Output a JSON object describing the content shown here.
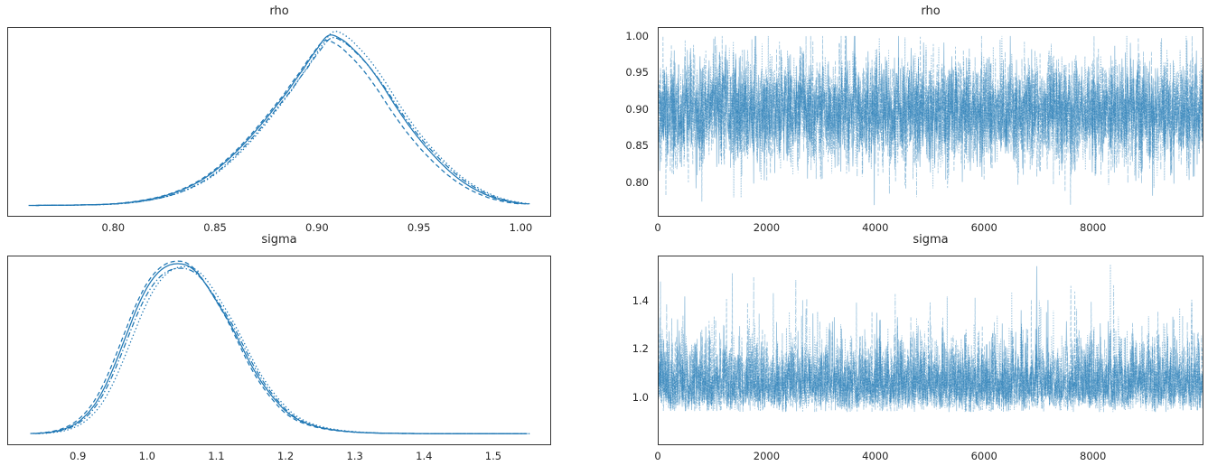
{
  "figure": {
    "background": "#ffffff",
    "line_color": "#1f77b4",
    "text_color": "#262626",
    "spine_color": "#363636",
    "n_chains": 4,
    "chain_linestyles": [
      "solid",
      "dashed",
      "dashdot",
      "dotted"
    ]
  },
  "chart_data": [
    {
      "id": "rho-posterior",
      "type": "line",
      "subtype": "kde-multichain",
      "title": "rho",
      "xlabel": "",
      "ylabel": "",
      "grid": false,
      "legend": "none",
      "xlim": [
        0.748,
        1.014
      ],
      "ylim_norm": [
        -0.055,
        1.045
      ],
      "x_ticks": [
        {
          "v": 0.8,
          "label": "0.80"
        },
        {
          "v": 0.85,
          "label": "0.85"
        },
        {
          "v": 0.9,
          "label": "0.90"
        },
        {
          "v": 0.95,
          "label": "0.95"
        },
        {
          "v": 1.0,
          "label": "1.00"
        }
      ],
      "y_ticks": [],
      "peak_x": 0.905,
      "curve": [
        [
          0.76,
          0.006
        ],
        [
          0.772,
          0.007
        ],
        [
          0.785,
          0.009
        ],
        [
          0.795,
          0.012
        ],
        [
          0.805,
          0.02
        ],
        [
          0.815,
          0.036
        ],
        [
          0.825,
          0.062
        ],
        [
          0.835,
          0.105
        ],
        [
          0.845,
          0.17
        ],
        [
          0.855,
          0.265
        ],
        [
          0.865,
          0.385
        ],
        [
          0.875,
          0.525
        ],
        [
          0.885,
          0.675
        ],
        [
          0.893,
          0.81
        ],
        [
          0.899,
          0.915
        ],
        [
          0.905,
          1.0
        ],
        [
          0.911,
          0.98
        ],
        [
          0.917,
          0.92
        ],
        [
          0.924,
          0.83
        ],
        [
          0.931,
          0.715
        ],
        [
          0.938,
          0.585
        ],
        [
          0.945,
          0.465
        ],
        [
          0.952,
          0.36
        ],
        [
          0.96,
          0.258
        ],
        [
          0.968,
          0.172
        ],
        [
          0.976,
          0.108
        ],
        [
          0.984,
          0.062
        ],
        [
          0.991,
          0.036
        ],
        [
          0.997,
          0.022
        ],
        [
          1.002,
          0.015
        ]
      ],
      "chains": [
        {
          "name": "chain-0",
          "style": "solid",
          "dash": null,
          "x_shift": 0.0,
          "y_scale": 1.0,
          "wiggle_amp": 0.008,
          "wiggle_freq": 55,
          "wiggle_phase": 0.5
        },
        {
          "name": "chain-1",
          "style": "dashed",
          "dash": [
            5,
            3.2
          ],
          "x_shift": -0.002,
          "y_scale": 0.958,
          "wiggle_amp": 0.012,
          "wiggle_freq": 48,
          "wiggle_phase": 2.1
        },
        {
          "name": "chain-2",
          "style": "dashdot",
          "dash": [
            6,
            2.5,
            1.4,
            2.5
          ],
          "x_shift": 0.0015,
          "y_scale": 0.99,
          "wiggle_amp": 0.01,
          "wiggle_freq": 62,
          "wiggle_phase": 4.0
        },
        {
          "name": "chain-3",
          "style": "dotted",
          "dash": [
            1.4,
            2.6
          ],
          "x_shift": 0.0025,
          "y_scale": 1.012,
          "wiggle_amp": 0.01,
          "wiggle_freq": 70,
          "wiggle_phase": 1.2
        }
      ]
    },
    {
      "id": "rho-trace",
      "type": "line",
      "subtype": "trace-multichain",
      "title": "rho",
      "xlabel": "",
      "ylabel": "",
      "grid": false,
      "legend": "none",
      "xlim": [
        0,
        9999
      ],
      "ylim": [
        0.755,
        1.012
      ],
      "x_ticks": [
        {
          "v": 0,
          "label": "0"
        },
        {
          "v": 2000,
          "label": "2000"
        },
        {
          "v": 4000,
          "label": "4000"
        },
        {
          "v": 6000,
          "label": "6000"
        },
        {
          "v": 8000,
          "label": "8000"
        }
      ],
      "y_ticks": [
        {
          "v": 0.8,
          "label": "0.80"
        },
        {
          "v": 0.85,
          "label": "0.85"
        },
        {
          "v": 0.9,
          "label": "0.90"
        },
        {
          "v": 0.95,
          "label": "0.95"
        },
        {
          "v": 1.0,
          "label": "1.00"
        }
      ],
      "n_points": 1500,
      "dist": {
        "kind": "normal",
        "mean": 0.898,
        "sd": 0.037,
        "min": 0.766,
        "max": 1.001
      },
      "spikes": [],
      "chains": [
        {
          "name": "chain-0",
          "style": "solid",
          "dash": null,
          "seed": 11,
          "opacity": 0.45
        },
        {
          "name": "chain-1",
          "style": "dashed",
          "dash": [
            4,
            2
          ],
          "seed": 22,
          "opacity": 0.4
        },
        {
          "name": "chain-2",
          "style": "dashdot",
          "dash": [
            5,
            2,
            1,
            2
          ],
          "seed": 33,
          "opacity": 0.4
        },
        {
          "name": "chain-3",
          "style": "dotted",
          "dash": [
            1.2,
            1.6
          ],
          "seed": 44,
          "opacity": 0.45
        }
      ]
    },
    {
      "id": "sigma-posterior",
      "type": "line",
      "subtype": "kde-multichain",
      "title": "sigma",
      "xlabel": "",
      "ylabel": "",
      "grid": false,
      "legend": "none",
      "xlim": [
        0.798,
        1.581
      ],
      "ylim_norm": [
        -0.055,
        1.045
      ],
      "x_ticks": [
        {
          "v": 0.9,
          "label": "0.9"
        },
        {
          "v": 1.0,
          "label": "1.0"
        },
        {
          "v": 1.1,
          "label": "1.1"
        },
        {
          "v": 1.2,
          "label": "1.2"
        },
        {
          "v": 1.3,
          "label": "1.3"
        },
        {
          "v": 1.4,
          "label": "1.4"
        },
        {
          "v": 1.5,
          "label": "1.5"
        }
      ],
      "y_ticks": [],
      "peak_x": 1.05,
      "curve": [
        [
          0.834,
          0.008
        ],
        [
          0.85,
          0.012
        ],
        [
          0.865,
          0.02
        ],
        [
          0.88,
          0.036
        ],
        [
          0.895,
          0.065
        ],
        [
          0.91,
          0.115
        ],
        [
          0.925,
          0.19
        ],
        [
          0.94,
          0.3
        ],
        [
          0.955,
          0.44
        ],
        [
          0.97,
          0.595
        ],
        [
          0.985,
          0.745
        ],
        [
          1.0,
          0.865
        ],
        [
          1.015,
          0.945
        ],
        [
          1.03,
          0.988
        ],
        [
          1.045,
          1.0
        ],
        [
          1.058,
          0.99
        ],
        [
          1.07,
          0.955
        ],
        [
          1.082,
          0.895
        ],
        [
          1.095,
          0.815
        ],
        [
          1.108,
          0.73
        ],
        [
          1.12,
          0.645
        ],
        [
          1.135,
          0.525
        ],
        [
          1.15,
          0.405
        ],
        [
          1.165,
          0.305
        ],
        [
          1.18,
          0.222
        ],
        [
          1.2,
          0.135
        ],
        [
          1.22,
          0.082
        ],
        [
          1.245,
          0.047
        ],
        [
          1.27,
          0.028
        ],
        [
          1.3,
          0.016
        ],
        [
          1.34,
          0.01
        ],
        [
          1.39,
          0.008
        ],
        [
          1.45,
          0.007
        ],
        [
          1.545,
          0.007
        ]
      ],
      "chains": [
        {
          "name": "chain-0",
          "style": "solid",
          "dash": null,
          "x_shift": 0.0,
          "y_scale": 1.0,
          "wiggle_amp": 0.008,
          "wiggle_freq": 26,
          "wiggle_phase": 0.8
        },
        {
          "name": "chain-1",
          "style": "dashed",
          "dash": [
            5,
            3.2
          ],
          "x_shift": -0.004,
          "y_scale": 1.012,
          "wiggle_amp": 0.012,
          "wiggle_freq": 22,
          "wiggle_phase": 2.6
        },
        {
          "name": "chain-2",
          "style": "dashdot",
          "dash": [
            6,
            2.5,
            1.4,
            2.5
          ],
          "x_shift": 0.003,
          "y_scale": 0.985,
          "wiggle_amp": 0.01,
          "wiggle_freq": 30,
          "wiggle_phase": 4.4
        },
        {
          "name": "chain-3",
          "style": "dotted",
          "dash": [
            1.4,
            2.6
          ],
          "x_shift": 0.008,
          "y_scale": 0.972,
          "wiggle_amp": 0.014,
          "wiggle_freq": 24,
          "wiggle_phase": 1.6
        }
      ]
    },
    {
      "id": "sigma-trace",
      "type": "line",
      "subtype": "trace-multichain",
      "title": "sigma",
      "xlabel": "",
      "ylabel": "",
      "grid": false,
      "legend": "none",
      "xlim": [
        0,
        9999
      ],
      "ylim": [
        0.81,
        1.585
      ],
      "x_ticks": [
        {
          "v": 0,
          "label": "0"
        },
        {
          "v": 2000,
          "label": "2000"
        },
        {
          "v": 4000,
          "label": "4000"
        },
        {
          "v": 6000,
          "label": "6000"
        },
        {
          "v": 8000,
          "label": "8000"
        }
      ],
      "y_ticks": [
        {
          "v": 1.0,
          "label": "1.0"
        },
        {
          "v": 1.2,
          "label": "1.2"
        },
        {
          "v": 1.4,
          "label": "1.4"
        }
      ],
      "n_points": 1500,
      "dist": {
        "kind": "quad",
        "a": 1.06,
        "b": 0.078,
        "c": 0.013,
        "min": 0.843,
        "max": 1.552
      },
      "spikes": [
        {
          "x": 480,
          "y": 1.42
        },
        {
          "x": 1250,
          "y": 1.41
        },
        {
          "x": 4350,
          "y": 1.43
        },
        {
          "x": 5300,
          "y": 1.42
        },
        {
          "x": 6950,
          "y": 1.545
        },
        {
          "x": 7650,
          "y": 1.44
        }
      ],
      "chains": [
        {
          "name": "chain-0",
          "style": "solid",
          "dash": null,
          "seed": 55,
          "opacity": 0.45
        },
        {
          "name": "chain-1",
          "style": "dashed",
          "dash": [
            4,
            2
          ],
          "seed": 66,
          "opacity": 0.4
        },
        {
          "name": "chain-2",
          "style": "dashdot",
          "dash": [
            5,
            2,
            1,
            2
          ],
          "seed": 77,
          "opacity": 0.4
        },
        {
          "name": "chain-3",
          "style": "dotted",
          "dash": [
            1.2,
            1.6
          ],
          "seed": 88,
          "opacity": 0.45
        }
      ]
    }
  ]
}
